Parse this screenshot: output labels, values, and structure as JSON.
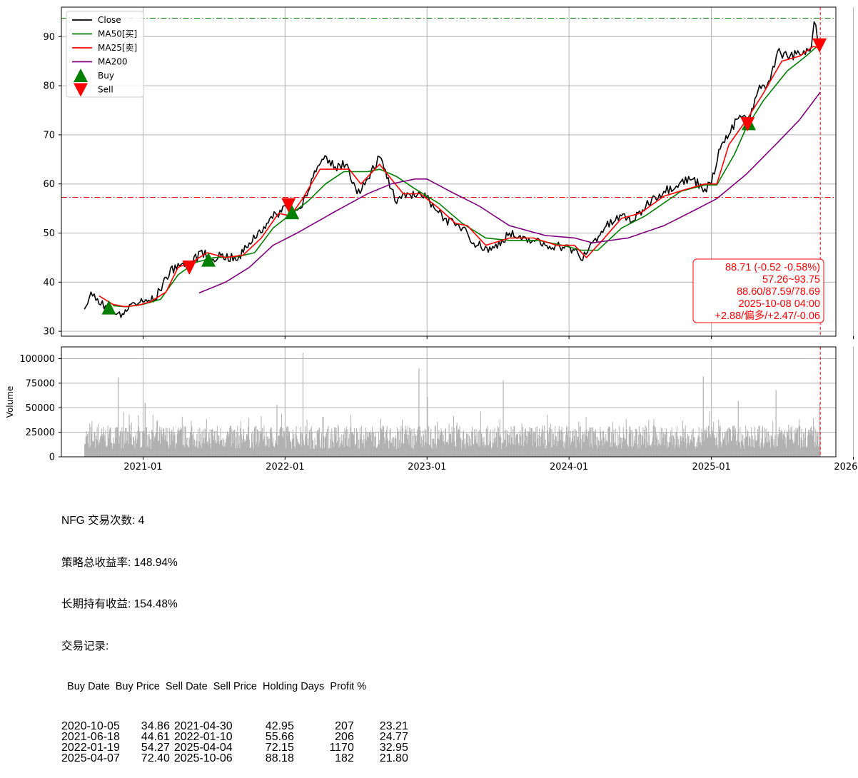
{
  "chart_data": [
    {
      "type": "line",
      "ylim": [
        29,
        96
      ],
      "yticks": [
        30,
        40,
        50,
        60,
        70,
        80,
        90
      ],
      "x_start": "2020-08-03",
      "x_end": "2025-10-08",
      "xlim": [
        "2020-06-05",
        "2025-11-17"
      ],
      "grid": true,
      "legend": {
        "location": "upper-left",
        "entries": [
          "Close",
          "MA50[买]",
          "MA25[卖]",
          "MA200",
          "Buy",
          "Sell"
        ]
      },
      "colors": {
        "Close": "#000000",
        "MA50[买]": "#008000",
        "MA25[卖]": "#ff0000",
        "MA200": "#800080",
        "Buy": "#008000",
        "Sell": "#ff0000"
      },
      "series": [
        {
          "name": "Close",
          "points": [
            [
              "2020-08-03",
              34.5
            ],
            [
              "2020-08-20",
              38.0
            ],
            [
              "2020-09-10",
              35.5
            ],
            [
              "2020-10-05",
              34.9
            ],
            [
              "2020-11-05",
              32.8
            ],
            [
              "2020-12-01",
              35.5
            ],
            [
              "2021-01-04",
              36.0
            ],
            [
              "2021-02-01",
              36.5
            ],
            [
              "2021-03-01",
              41.0
            ],
            [
              "2021-04-01",
              43.8
            ],
            [
              "2021-04-30",
              43.0
            ],
            [
              "2021-06-01",
              46.5
            ],
            [
              "2021-06-18",
              44.6
            ],
            [
              "2021-07-20",
              45.5
            ],
            [
              "2021-09-01",
              44.5
            ],
            [
              "2021-10-01",
              48.0
            ],
            [
              "2021-11-15",
              52.0
            ],
            [
              "2022-01-03",
              55.5
            ],
            [
              "2022-01-10",
              55.7
            ],
            [
              "2022-01-19",
              54.3
            ],
            [
              "2022-02-10",
              55.0
            ],
            [
              "2022-03-10",
              61.0
            ],
            [
              "2022-04-10",
              65.0
            ],
            [
              "2022-05-10",
              63.5
            ],
            [
              "2022-06-10",
              64.0
            ],
            [
              "2022-07-05",
              58.0
            ],
            [
              "2022-08-10",
              62.5
            ],
            [
              "2022-09-01",
              65.5
            ],
            [
              "2022-10-01",
              59.0
            ],
            [
              "2022-10-15",
              56.0
            ],
            [
              "2022-11-15",
              58.0
            ],
            [
              "2022-12-15",
              58.0
            ],
            [
              "2023-01-15",
              56.0
            ],
            [
              "2023-02-15",
              53.0
            ],
            [
              "2023-03-15",
              51.5
            ],
            [
              "2023-04-10",
              51.0
            ],
            [
              "2023-05-01",
              48.0
            ],
            [
              "2023-06-15",
              46.5
            ],
            [
              "2023-08-01",
              50.0
            ],
            [
              "2023-09-01",
              48.5
            ],
            [
              "2023-10-01",
              48.5
            ],
            [
              "2023-11-01",
              47.5
            ],
            [
              "2023-12-01",
              47.5
            ],
            [
              "2024-01-15",
              46.5
            ],
            [
              "2024-02-01",
              44.5
            ],
            [
              "2024-03-01",
              48.0
            ],
            [
              "2024-04-01",
              51.0
            ],
            [
              "2024-05-15",
              53.5
            ],
            [
              "2024-06-15",
              52.5
            ],
            [
              "2024-08-01",
              57.0
            ],
            [
              "2024-09-01",
              58.5
            ],
            [
              "2024-10-15",
              60.5
            ],
            [
              "2024-11-15",
              61.0
            ],
            [
              "2024-12-15",
              59.0
            ],
            [
              "2025-01-01",
              60.0
            ],
            [
              "2025-01-20",
              67.0
            ],
            [
              "2025-02-15",
              70.0
            ],
            [
              "2025-03-15",
              74.0
            ],
            [
              "2025-04-07",
              72.4
            ],
            [
              "2025-05-01",
              79.0
            ],
            [
              "2025-06-01",
              81.0
            ],
            [
              "2025-06-20",
              87.0
            ],
            [
              "2025-07-15",
              86.0
            ],
            [
              "2025-08-15",
              86.5
            ],
            [
              "2025-09-15",
              88.0
            ],
            [
              "2025-09-22",
              93.0
            ],
            [
              "2025-10-06",
              88.2
            ],
            [
              "2025-10-08",
              88.71
            ]
          ]
        },
        {
          "name": "MA50[买]",
          "points": [
            [
              "2020-10-15",
              35.2
            ],
            [
              "2020-11-20",
              35.0
            ],
            [
              "2021-01-01",
              35.5
            ],
            [
              "2021-02-15",
              36.5
            ],
            [
              "2021-04-01",
              41.5
            ],
            [
              "2021-05-15",
              44.0
            ],
            [
              "2021-07-01",
              45.0
            ],
            [
              "2021-09-01",
              45.2
            ],
            [
              "2021-10-15",
              46.0
            ],
            [
              "2021-12-01",
              51.0
            ],
            [
              "2022-01-15",
              53.8
            ],
            [
              "2022-03-01",
              56.5
            ],
            [
              "2022-04-15",
              60.0
            ],
            [
              "2022-06-01",
              62.5
            ],
            [
              "2022-08-01",
              62.5
            ],
            [
              "2022-09-01",
              63.0
            ],
            [
              "2022-10-15",
              61.5
            ],
            [
              "2022-12-01",
              59.0
            ],
            [
              "2023-02-01",
              56.0
            ],
            [
              "2023-04-01",
              52.0
            ],
            [
              "2023-06-01",
              49.0
            ],
            [
              "2023-08-01",
              48.5
            ],
            [
              "2023-10-15",
              48.5
            ],
            [
              "2023-12-15",
              47.5
            ],
            [
              "2024-02-01",
              46.5
            ],
            [
              "2024-03-15",
              46.5
            ],
            [
              "2024-05-15",
              51.0
            ],
            [
              "2024-07-15",
              53.5
            ],
            [
              "2024-10-15",
              58.5
            ],
            [
              "2024-12-15",
              59.8
            ],
            [
              "2025-01-15",
              59.8
            ],
            [
              "2025-03-01",
              66.0
            ],
            [
              "2025-04-01",
              71.5
            ],
            [
              "2025-05-15",
              77.0
            ],
            [
              "2025-07-15",
              83.0
            ],
            [
              "2025-09-01",
              86.0
            ],
            [
              "2025-10-08",
              88.6
            ]
          ]
        },
        {
          "name": "MA25[卖]",
          "points": [
            [
              "2020-09-10",
              37.2
            ],
            [
              "2020-10-15",
              35.5
            ],
            [
              "2020-11-15",
              35.0
            ],
            [
              "2020-12-20",
              35.3
            ],
            [
              "2021-01-20",
              36.0
            ],
            [
              "2021-03-01",
              38.0
            ],
            [
              "2021-04-01",
              43.0
            ],
            [
              "2021-05-15",
              44.5
            ],
            [
              "2021-06-15",
              46.0
            ],
            [
              "2021-08-01",
              45.0
            ],
            [
              "2021-09-15",
              45.5
            ],
            [
              "2021-11-01",
              49.0
            ],
            [
              "2021-12-15",
              54.0
            ],
            [
              "2022-01-15",
              53.5
            ],
            [
              "2022-02-15",
              57.0
            ],
            [
              "2022-04-01",
              63.0
            ],
            [
              "2022-05-01",
              63.0
            ],
            [
              "2022-06-15",
              63.0
            ],
            [
              "2022-07-15",
              60.0
            ],
            [
              "2022-09-01",
              64.0
            ],
            [
              "2022-10-01",
              61.0
            ],
            [
              "2022-11-01",
              58.0
            ],
            [
              "2022-12-15",
              58.0
            ],
            [
              "2023-02-01",
              55.0
            ],
            [
              "2023-03-15",
              52.0
            ],
            [
              "2023-04-15",
              51.5
            ],
            [
              "2023-06-01",
              47.5
            ],
            [
              "2023-08-01",
              49.0
            ],
            [
              "2023-10-01",
              49.0
            ],
            [
              "2023-12-01",
              47.5
            ],
            [
              "2024-01-15",
              47.5
            ],
            [
              "2024-02-15",
              45.0
            ],
            [
              "2024-04-01",
              49.0
            ],
            [
              "2024-05-15",
              53.0
            ],
            [
              "2024-07-01",
              54.0
            ],
            [
              "2024-09-01",
              57.5
            ],
            [
              "2024-11-01",
              59.0
            ],
            [
              "2024-12-15",
              60.0
            ],
            [
              "2025-01-15",
              60.0
            ],
            [
              "2025-02-15",
              68.0
            ],
            [
              "2025-04-01",
              73.0
            ],
            [
              "2025-05-15",
              78.5
            ],
            [
              "2025-07-01",
              85.0
            ],
            [
              "2025-08-15",
              86.0
            ],
            [
              "2025-09-20",
              88.0
            ],
            [
              "2025-10-08",
              87.59
            ]
          ]
        },
        {
          "name": "MA200",
          "points": [
            [
              "2021-05-25",
              37.8
            ],
            [
              "2021-08-01",
              40.0
            ],
            [
              "2021-10-01",
              43.0
            ],
            [
              "2021-12-01",
              47.5
            ],
            [
              "2022-02-01",
              50.0
            ],
            [
              "2022-05-01",
              54.0
            ],
            [
              "2022-08-01",
              58.0
            ],
            [
              "2022-10-01",
              60.0
            ],
            [
              "2022-12-01",
              61.0
            ],
            [
              "2023-01-01",
              61.0
            ],
            [
              "2023-03-01",
              58.5
            ],
            [
              "2023-05-15",
              55.5
            ],
            [
              "2023-08-01",
              51.5
            ],
            [
              "2023-11-01",
              49.5
            ],
            [
              "2024-01-15",
              49.0
            ],
            [
              "2024-03-01",
              48.0
            ],
            [
              "2024-06-01",
              49.0
            ],
            [
              "2024-09-01",
              51.5
            ],
            [
              "2024-11-15",
              54.5
            ],
            [
              "2025-01-15",
              57.0
            ],
            [
              "2025-04-01",
              62.0
            ],
            [
              "2025-06-15",
              68.0
            ],
            [
              "2025-08-15",
              73.0
            ],
            [
              "2025-10-08",
              78.69
            ]
          ]
        }
      ],
      "markers": {
        "buy": [
          [
            "2020-10-05",
            34.86
          ],
          [
            "2021-06-18",
            44.61
          ],
          [
            "2022-01-19",
            54.27
          ],
          [
            "2025-04-07",
            72.4
          ]
        ],
        "sell": [
          [
            "2021-04-30",
            42.95
          ],
          [
            "2022-01-10",
            55.66
          ],
          [
            "2025-04-04",
            72.15
          ],
          [
            "2025-10-06",
            88.18
          ]
        ]
      },
      "hlines": [
        {
          "y": 93.75,
          "color": "#008000"
        },
        {
          "y": 57.26,
          "color": "#ff0000"
        }
      ],
      "vline": {
        "x": "2025-10-08",
        "color": "#ff0000"
      },
      "annotation": [
        "88.71 (-0.52 -0.58%)",
        "57.26~93.75",
        "88.60/87.59/78.69",
        "2025-10-08 04:00",
        "+2.88/偏多/+2.47/-0.06"
      ]
    },
    {
      "type": "bar",
      "ylabel": "Volume",
      "ylim": [
        0,
        112000
      ],
      "yticks": [
        0,
        25000,
        50000,
        75000,
        100000
      ],
      "xlim": [
        "2020-06-05",
        "2025-11-17"
      ],
      "xticks": [
        "2021-01",
        "2022-01",
        "2023-01",
        "2024-01",
        "2025-01",
        "2026-01"
      ],
      "grid": true,
      "color": "#b0b0b0",
      "peaks": [
        [
          "2020-10-28",
          81000
        ],
        [
          "2021-01-05",
          55000
        ],
        [
          "2021-12-10",
          53000
        ],
        [
          "2022-02-15",
          106000
        ],
        [
          "2022-12-10",
          90000
        ],
        [
          "2023-01-01",
          61000
        ],
        [
          "2023-07-15",
          78000
        ],
        [
          "2024-12-10",
          82000
        ],
        [
          "2025-03-10",
          57000
        ],
        [
          "2025-06-15",
          68000
        ],
        [
          "2025-10-05",
          55000
        ]
      ]
    }
  ],
  "summary": {
    "trade_count": "NFG 交易次数: 4",
    "strategy_return": "策略总收益率: 148.94%",
    "hold_return": "长期持有收益: 154.48%",
    "records_title": "交易记录:",
    "table_header": "  Buy Date  Buy Price  Sell Date  Sell Price  Holding Days  Profit %",
    "rows": [
      [
        "2020-10-05",
        "34.86",
        "2021-04-30",
        "42.95",
        "207",
        "23.21"
      ],
      [
        "2021-06-18",
        "44.61",
        "2022-01-10",
        "55.66",
        "206",
        "24.77"
      ],
      [
        "2022-01-19",
        "54.27",
        "2025-04-04",
        "72.15",
        "1170",
        "32.95"
      ],
      [
        "2025-04-07",
        "72.40",
        "2025-10-06",
        "88.18",
        "182",
        "21.80"
      ]
    ]
  }
}
